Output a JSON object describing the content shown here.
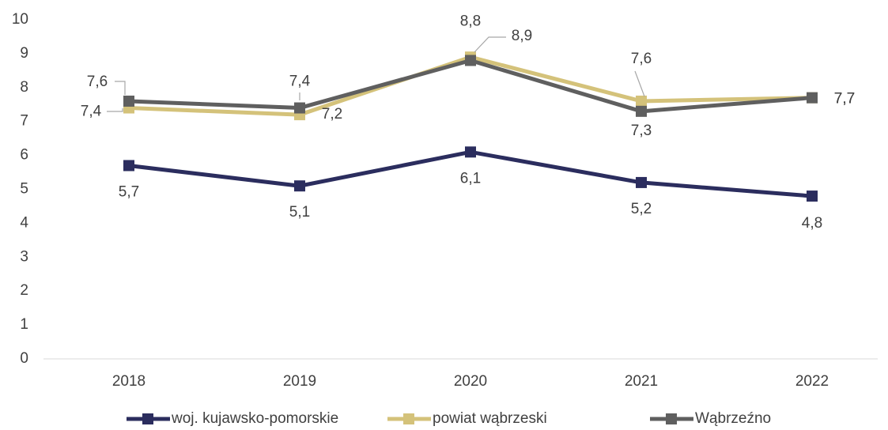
{
  "chart_data": {
    "type": "line",
    "categories": [
      "2018",
      "2019",
      "2020",
      "2021",
      "2022"
    ],
    "series": [
      {
        "name": "woj. kujawsko-pomorskie",
        "color": "#2b2d5e",
        "values": [
          5.7,
          5.1,
          6.1,
          5.2,
          4.8
        ],
        "value_labels": [
          "5,7",
          "5,1",
          "6,1",
          "5,2",
          "4,8"
        ]
      },
      {
        "name": "powiat wąbrzeski",
        "color": "#d4c27a",
        "values": [
          7.4,
          7.2,
          8.9,
          7.6,
          7.7
        ],
        "value_labels": [
          "7,4",
          "7,2",
          "8,9",
          "7,6",
          "7,7"
        ]
      },
      {
        "name": "Wąbrzeźno",
        "color": "#5f5f5f",
        "values": [
          7.6,
          7.4,
          8.8,
          7.3,
          7.7
        ],
        "value_labels": [
          "7,6",
          "7,4",
          "8,8",
          "7,3",
          "7,7"
        ]
      }
    ],
    "ylim": [
      0,
      10
    ],
    "yticks": [
      0,
      1,
      2,
      3,
      4,
      5,
      6,
      7,
      8,
      9,
      10
    ],
    "grid": false,
    "legend": "bottom"
  }
}
